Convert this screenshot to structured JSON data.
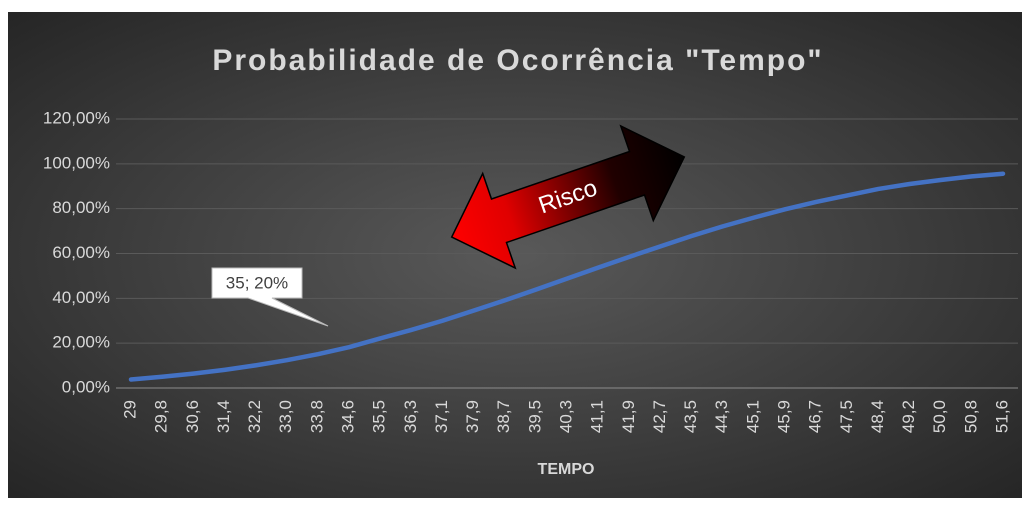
{
  "chart_data": {
    "type": "line",
    "title": "Probabilidade de Ocorrência \"Tempo\"",
    "x_label": "TEMPO",
    "categories": [
      "29",
      "29,8",
      "30,6",
      "31,4",
      "32,2",
      "33,0",
      "33,8",
      "34,6",
      "35,5",
      "36,3",
      "37,1",
      "37,9",
      "38,7",
      "39,5",
      "40,3",
      "41,1",
      "41,9",
      "42,7",
      "43,5",
      "44,3",
      "45,1",
      "45,9",
      "46,7",
      "47,5",
      "48,4",
      "49,2",
      "50,0",
      "50,8",
      "51,6"
    ],
    "series": [
      {
        "name": "Probabilidade",
        "color": "#4472c4",
        "values": [
          3.8,
          5.0,
          6.4,
          8.1,
          10.1,
          12.4,
          15.1,
          18.2,
          22.1,
          25.9,
          30.0,
          34.5,
          39.1,
          43.9,
          48.8,
          53.7,
          58.5,
          63.2,
          67.8,
          72.1,
          76.0,
          79.7,
          83.0,
          85.9,
          88.8,
          91.0,
          92.8,
          94.4,
          95.6
        ]
      }
    ],
    "ylim": [
      0,
      120
    ],
    "yticks": [
      {
        "value": 0,
        "label": "0,00%"
      },
      {
        "value": 20,
        "label": "20,00%"
      },
      {
        "value": 40,
        "label": "40,00%"
      },
      {
        "value": 60,
        "label": "60,00%"
      },
      {
        "value": 80,
        "label": "80,00%"
      },
      {
        "value": 100,
        "label": "100,00%"
      },
      {
        "value": 120,
        "label": "120,00%"
      }
    ],
    "grid": true,
    "annotations": [
      "35; 20%",
      "Risco"
    ]
  }
}
